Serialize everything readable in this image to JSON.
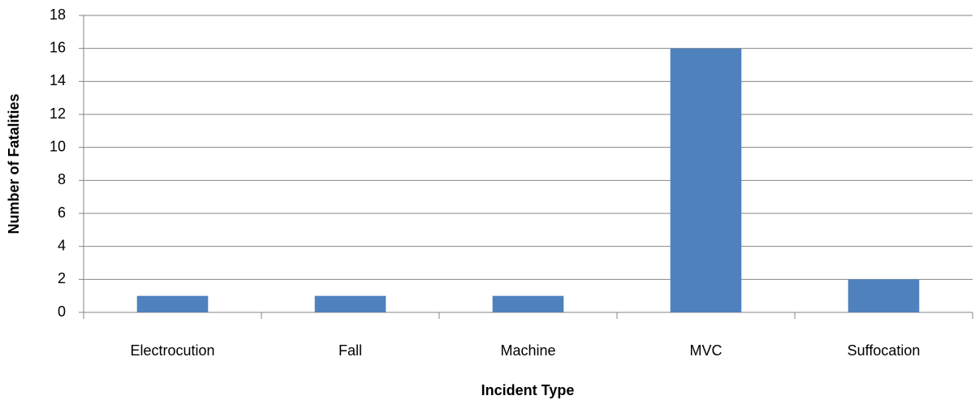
{
  "chart_data": {
    "type": "bar",
    "x_label": "Incident Type",
    "y_label": "Number of Fatalities",
    "categories": [
      "Electrocution",
      "Fall",
      "Machine",
      "MVC",
      "Suffocation"
    ],
    "values": [
      1,
      1,
      1,
      16,
      2
    ],
    "color": "#4f81bd",
    "ylim": [
      0,
      18
    ],
    "yticks": [
      0,
      2,
      4,
      6,
      8,
      10,
      12,
      14,
      16,
      18
    ],
    "grid": true
  }
}
